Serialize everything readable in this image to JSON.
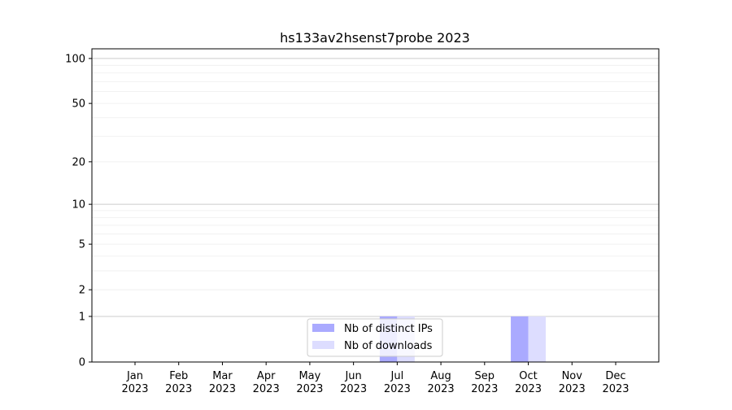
{
  "chart_data": {
    "type": "bar",
    "title": "hs133av2hsenst7probe 2023",
    "xlabel": "",
    "ylabel": "",
    "yscale": "log(y+1)",
    "ylim": [
      0,
      116
    ],
    "yticks": [
      0,
      1,
      2,
      5,
      10,
      20,
      50,
      100
    ],
    "ytick_labels": [
      "0",
      "1",
      "2",
      "5",
      "10",
      "20",
      "50",
      "100"
    ],
    "categories": [
      "Jan\n2023",
      "Feb\n2023",
      "Mar\n2023",
      "Apr\n2023",
      "May\n2023",
      "Jun\n2023",
      "Jul\n2023",
      "Aug\n2023",
      "Sep\n2023",
      "Oct\n2023",
      "Nov\n2023",
      "Dec\n2023"
    ],
    "series": [
      {
        "name": "Nb of distinct IPs",
        "color": "#aaaaff",
        "values": [
          0,
          0,
          0,
          0,
          0,
          0,
          1,
          0,
          0,
          1,
          0,
          0
        ]
      },
      {
        "name": "Nb of downloads",
        "color": "#ddddff",
        "values": [
          0,
          0,
          0,
          0,
          0,
          0,
          1,
          0,
          0,
          1,
          0,
          0
        ]
      }
    ],
    "grid": true,
    "legend_placement": "lower center"
  }
}
